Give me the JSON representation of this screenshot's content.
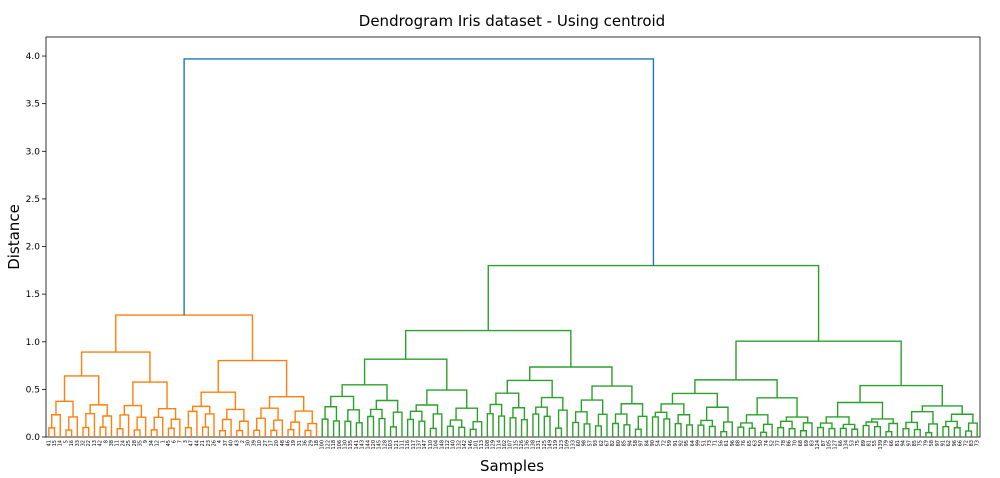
{
  "chart_data": {
    "type": "dendrogram",
    "title": "Dendrogram Iris dataset - Using centroid",
    "xlabel": "Samples",
    "ylabel": "Distance",
    "ylim": [
      0,
      4.2
    ],
    "yticks": [
      "0.0",
      "0.5",
      "1.0",
      "1.5",
      "2.0",
      "2.5",
      "3.0",
      "3.5",
      "4.0"
    ],
    "colors": {
      "root": "#1f77b4",
      "cluster1": "#ff7f0e",
      "cluster2": "#2ca02c"
    },
    "root_merge_height": 3.97,
    "cluster1": {
      "top_height": 1.28,
      "leaves": [
        "41",
        "15",
        "14",
        "5",
        "16",
        "33",
        "32",
        "22",
        "13",
        "42",
        "8",
        "38",
        "11",
        "24",
        "25",
        "28",
        "35",
        "9",
        "34",
        "12",
        "1",
        "45",
        "6",
        "7",
        "3",
        "47",
        "44",
        "21",
        "23",
        "26",
        "4",
        "37",
        "40",
        "43",
        "2",
        "30",
        "39",
        "10",
        "27",
        "17",
        "20",
        "48",
        "46",
        "19",
        "31",
        "36",
        "29",
        "18"
      ]
    },
    "cluster2": {
      "top_height": 1.8,
      "leaves": [
        "100",
        "122",
        "118",
        "106",
        "130",
        "135",
        "141",
        "143",
        "144",
        "120",
        "145",
        "128",
        "103",
        "121",
        "111",
        "116",
        "117",
        "137",
        "147",
        "110",
        "104",
        "148",
        "112",
        "140",
        "132",
        "142",
        "146",
        "101",
        "113",
        "108",
        "129",
        "114",
        "102",
        "107",
        "115",
        "126",
        "136",
        "138",
        "131",
        "125",
        "149",
        "119",
        "123",
        "109",
        "133",
        "60",
        "98",
        "57",
        "93",
        "62",
        "67",
        "82",
        "80",
        "85",
        "94",
        "58",
        "97",
        "84",
        "90",
        "54",
        "72",
        "59",
        "91",
        "92",
        "95",
        "64",
        "99",
        "51",
        "73",
        "71",
        "56",
        "61",
        "96",
        "88",
        "76",
        "65",
        "63",
        "50",
        "74",
        "52",
        "77",
        "78",
        "86",
        "70",
        "68",
        "69",
        "83",
        "124",
        "87",
        "105",
        "127",
        "66",
        "134",
        "53",
        "75",
        "89",
        "81",
        "55",
        "139",
        "79",
        "66",
        "81",
        "94",
        "97",
        "85",
        "75",
        "79",
        "58",
        "97",
        "91",
        "62",
        "96",
        "66",
        "72",
        "83",
        "73"
      ]
    }
  }
}
